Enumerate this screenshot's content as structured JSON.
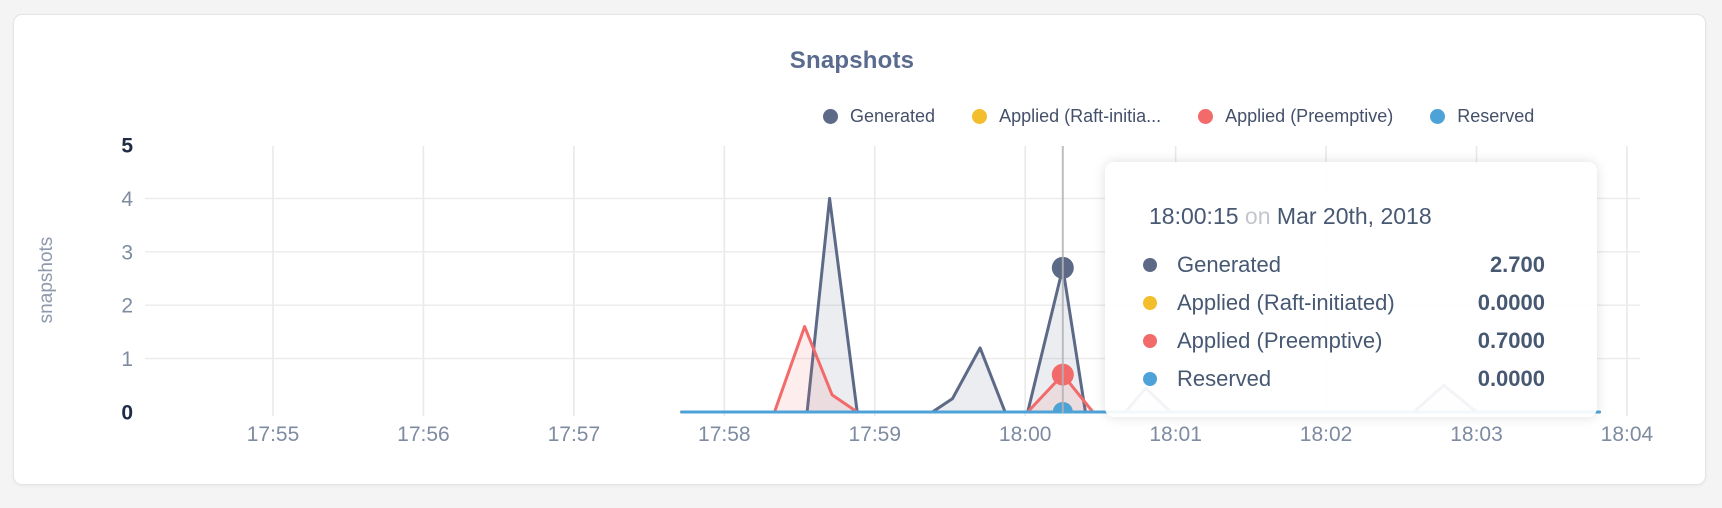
{
  "header": {
    "title": "Snapshots"
  },
  "legend": {
    "items": [
      {
        "label": "Generated",
        "color": "#5c6a87"
      },
      {
        "label": "Applied (Raft-initia...",
        "color": "#f2be2c"
      },
      {
        "label": "Applied (Preemptive)",
        "color": "#f26a6a"
      },
      {
        "label": "Reserved",
        "color": "#4da3d8"
      }
    ]
  },
  "tooltip": {
    "time": "18:00:15",
    "on_word": "on",
    "date": "Mar 20th, 2018",
    "rows": [
      {
        "label": "Generated",
        "color": "#5c6a87",
        "value": "2.700"
      },
      {
        "label": "Applied (Raft-initiated)",
        "color": "#f2be2c",
        "value": "0.0000"
      },
      {
        "label": "Applied (Preemptive)",
        "color": "#f26a6a",
        "value": "0.7000"
      },
      {
        "label": "Reserved",
        "color": "#4da3d8",
        "value": "0.0000"
      }
    ]
  },
  "chart_data": {
    "type": "area",
    "title": "Snapshots",
    "ylabel": "snapshots",
    "xlabel": "",
    "ylim": [
      0,
      5
    ],
    "y_ticks": [
      0,
      1,
      2,
      3,
      4,
      5
    ],
    "x_tick_labels": [
      "17:55",
      "17:56",
      "17:57",
      "17:58",
      "17:59",
      "18:00",
      "18:01",
      "18:02",
      "18:03",
      "18:04"
    ],
    "x_unit": "seconds after 17:55",
    "grid": true,
    "legend_position": "top-right",
    "series": [
      {
        "name": "Generated",
        "color": "#5c6a87",
        "points": [
          [
            163,
            0
          ],
          [
            213,
            0
          ],
          [
            222,
            4.0
          ],
          [
            233,
            0
          ],
          [
            263,
            0
          ],
          [
            271,
            0.25
          ],
          [
            282,
            1.2
          ],
          [
            292,
            0
          ],
          [
            301,
            0
          ],
          [
            315,
            2.7
          ],
          [
            324,
            0
          ],
          [
            340,
            0
          ],
          [
            348,
            0.45
          ],
          [
            358,
            0
          ],
          [
            455,
            0
          ],
          [
            467,
            0.5
          ],
          [
            480,
            0
          ],
          [
            529,
            0
          ]
        ]
      },
      {
        "name": "Applied (Raft-initiated)",
        "color": "#f2be2c",
        "points": [
          [
            163,
            0
          ],
          [
            529,
            0
          ]
        ]
      },
      {
        "name": "Applied (Preemptive)",
        "color": "#f26a6a",
        "points": [
          [
            163,
            0
          ],
          [
            200,
            0
          ],
          [
            212,
            1.6
          ],
          [
            223,
            0.32
          ],
          [
            233,
            0
          ],
          [
            301,
            0
          ],
          [
            315,
            0.7
          ],
          [
            327,
            0
          ],
          [
            529,
            0
          ]
        ]
      },
      {
        "name": "Reserved",
        "color": "#4da3d8",
        "points": [
          [
            163,
            0
          ],
          [
            529,
            0
          ]
        ]
      }
    ],
    "hover": {
      "t": 315,
      "time_label": "18:00:15",
      "date_label": "Mar 20th, 2018",
      "points": [
        {
          "series": "Generated",
          "value": 2.7
        },
        {
          "series": "Applied (Raft-initiated)",
          "value": 0.0
        },
        {
          "series": "Applied (Preemptive)",
          "value": 0.7
        },
        {
          "series": "Reserved",
          "value": 0.0
        }
      ]
    }
  }
}
